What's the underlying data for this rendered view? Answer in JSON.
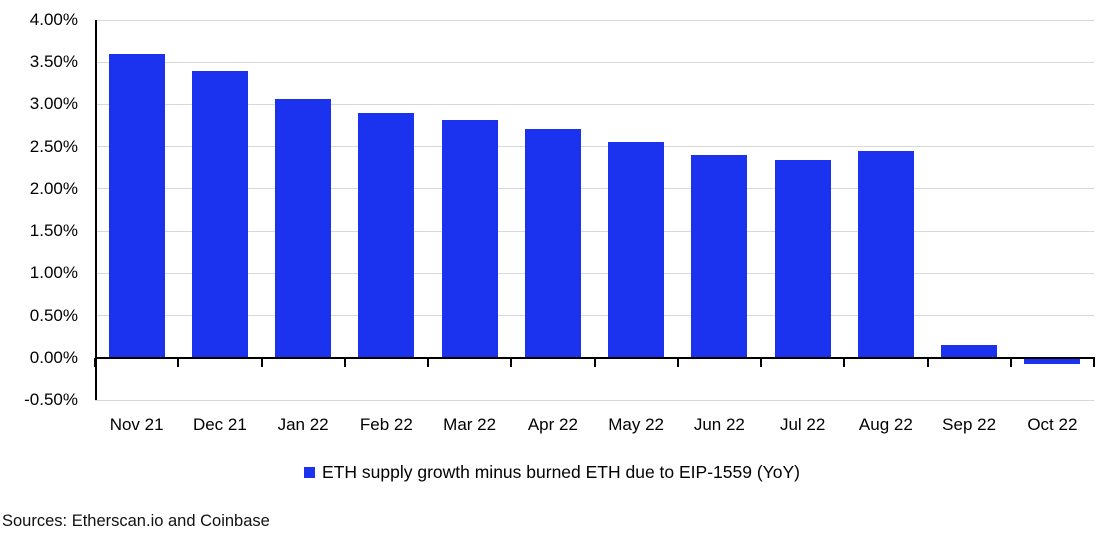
{
  "chart_data": {
    "type": "bar",
    "title": "",
    "legend_label": "ETH supply growth minus burned ETH due to EIP-1559 (YoY)",
    "legend_position": "bottom-center",
    "categories": [
      "Nov 21",
      "Dec 21",
      "Jan 22",
      "Feb 22",
      "Mar 22",
      "Apr 22",
      "May 22",
      "Jun 22",
      "Jul 22",
      "Aug 22",
      "Sep 22",
      "Oct 22"
    ],
    "values": [
      3.6,
      3.4,
      3.07,
      2.9,
      2.81,
      2.71,
      2.55,
      2.4,
      2.34,
      2.45,
      0.15,
      -0.06
    ],
    "value_unit": "%",
    "xlabel": "",
    "ylabel": "",
    "ylim": [
      -0.5,
      4.0
    ],
    "ytick_step": 0.5,
    "ytick_labels": [
      "4.00%",
      "3.50%",
      "3.00%",
      "2.50%",
      "2.00%",
      "1.50%",
      "1.00%",
      "0.50%",
      "0.00%",
      "-0.50%"
    ],
    "grid": "horizontal",
    "colors": {
      "bar": "#1b33ef",
      "gridline": "#d8d8d8",
      "axis": "#000000",
      "text": "#000000"
    }
  },
  "footer": {
    "sources": "Sources: Etherscan.io and Coinbase"
  }
}
